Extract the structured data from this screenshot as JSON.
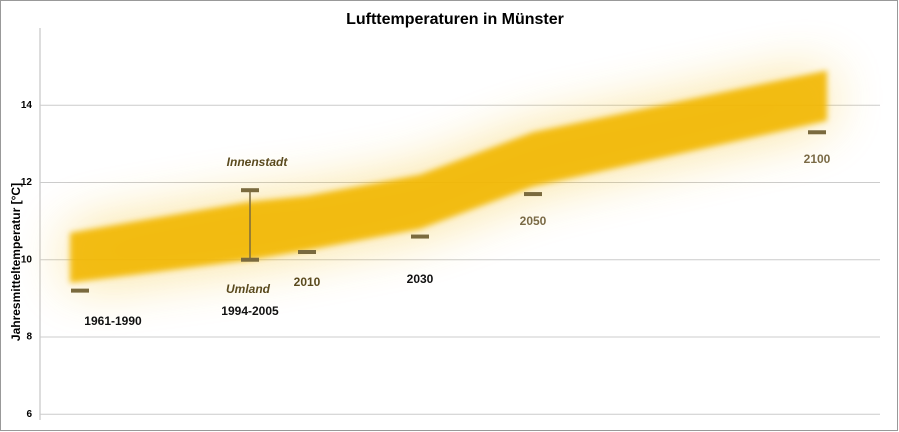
{
  "chart_data": {
    "type": "line",
    "title": "Lufttemperaturen in Münster",
    "y_label": "Jahresmitteltemperatur [°C]",
    "categories": [
      "1961-1990",
      "1994-2005",
      "2010",
      "2030",
      "2050",
      "2100"
    ],
    "values": [
      9.2,
      null,
      10.2,
      10.6,
      11.7,
      13.3
    ],
    "series": [
      {
        "name": "Innenstadt",
        "values": [
          null,
          11.8,
          null,
          null,
          null,
          null
        ]
      },
      {
        "name": "Umland",
        "values": [
          null,
          10.0,
          null,
          null,
          null,
          null
        ]
      }
    ],
    "color": "#7a6a3e",
    "band": {
      "color": "#f2b705",
      "lower": [
        9.4,
        10.0,
        10.25,
        10.8,
        11.9,
        13.6
      ],
      "upper": [
        10.7,
        11.5,
        11.65,
        12.2,
        13.3,
        14.9
      ]
    },
    "ylim": [
      5.85,
      16
    ],
    "yticks": [
      6,
      8,
      10,
      12,
      14
    ],
    "grid": true
  }
}
